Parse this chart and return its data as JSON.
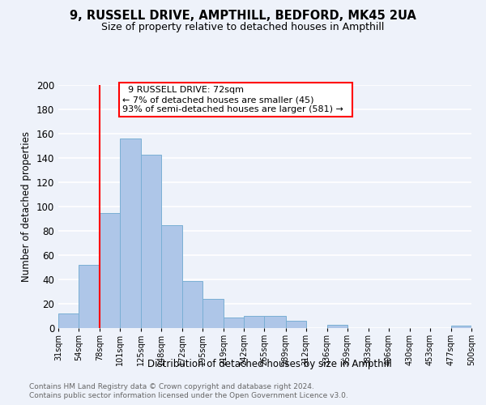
{
  "title1": "9, RUSSELL DRIVE, AMPTHILL, BEDFORD, MK45 2UA",
  "title2": "Size of property relative to detached houses in Ampthill",
  "xlabel": "Distribution of detached houses by size in Ampthill",
  "ylabel": "Number of detached properties",
  "footnote1": "Contains HM Land Registry data © Crown copyright and database right 2024.",
  "footnote2": "Contains public sector information licensed under the Open Government Licence v3.0.",
  "bin_edges": [
    31,
    54,
    78,
    101,
    125,
    148,
    172,
    195,
    219,
    242,
    265,
    289,
    312,
    336,
    359,
    383,
    406,
    430,
    453,
    477,
    500
  ],
  "bin_labels": [
    "31sqm",
    "54sqm",
    "78sqm",
    "101sqm",
    "125sqm",
    "148sqm",
    "172sqm",
    "195sqm",
    "219sqm",
    "242sqm",
    "265sqm",
    "289sqm",
    "312sqm",
    "336sqm",
    "359sqm",
    "383sqm",
    "406sqm",
    "430sqm",
    "453sqm",
    "477sqm",
    "500sqm"
  ],
  "counts": [
    12,
    52,
    95,
    156,
    143,
    85,
    39,
    24,
    9,
    10,
    10,
    6,
    0,
    3,
    0,
    0,
    0,
    0,
    0,
    2
  ],
  "bar_color": "#aec6e8",
  "bar_edge_color": "#7aafd4",
  "reference_line_x": 78,
  "reference_line_color": "red",
  "annotation_title": "9 RUSSELL DRIVE: 72sqm",
  "annotation_line1": "← 7% of detached houses are smaller (45)",
  "annotation_line2": "93% of semi-detached houses are larger (581) →",
  "annotation_box_color": "white",
  "annotation_box_edge_color": "red",
  "ylim": [
    0,
    200
  ],
  "yticks": [
    0,
    20,
    40,
    60,
    80,
    100,
    120,
    140,
    160,
    180,
    200
  ],
  "bg_color": "#eef2fa"
}
